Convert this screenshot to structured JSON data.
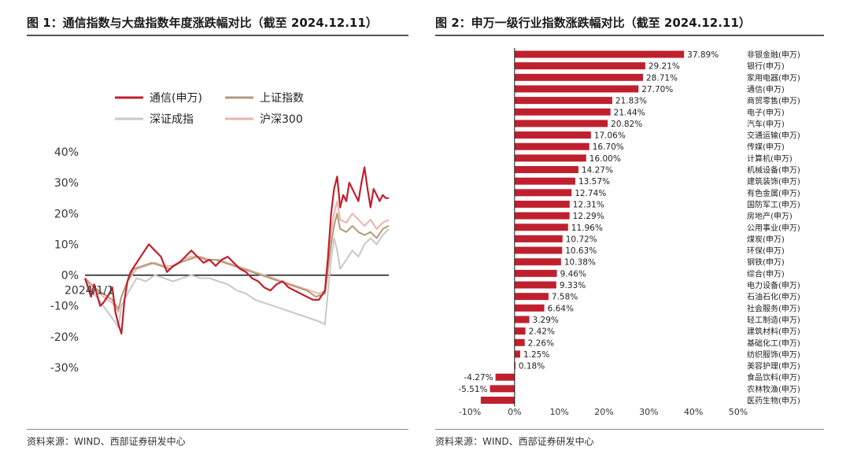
{
  "figure1": {
    "title": "图 1：通信指数与大盘指数年度涨跌幅对比（截至 2024.12.11）",
    "source": "资料来源：WIND、西部证券研发中心",
    "legend": [
      {
        "label": "通信(申万)",
        "color": "#c0202e"
      },
      {
        "label": "上证指数",
        "color": "#b59a78"
      },
      {
        "label": "深证成指",
        "color": "#c8c8c8"
      },
      {
        "label": "沪深300",
        "color": "#e8b4ad"
      }
    ]
  },
  "figure2": {
    "title": "图 2：申万一级行业指数涨跌幅对比（截至 2024.12.11）",
    "source": "资料来源：WIND、西部证券研发中心"
  },
  "chart_data": [
    {
      "type": "line",
      "title": "通信指数与大盘指数年度涨跌幅对比（截至 2024.12.11）",
      "xlabel": "",
      "ylabel": "",
      "x_tick_labels": [
        "2024/1/1"
      ],
      "y_tick_labels": [
        "40%",
        "30%",
        "20%",
        "10%",
        "0%",
        "-10%",
        "-20%",
        "-30%"
      ],
      "ylim": [
        -30,
        40
      ],
      "x_range": [
        0,
        100
      ],
      "grid": false,
      "legend_position": "top",
      "series": [
        {
          "name": "通信(申万)",
          "color": "#c0202e",
          "x": [
            0,
            2,
            3,
            5,
            6,
            8,
            9,
            10,
            11,
            12,
            13,
            14,
            15,
            17,
            19,
            21,
            23,
            25,
            27,
            29,
            31,
            33,
            35,
            37,
            39,
            41,
            43,
            45,
            47,
            49,
            51,
            53,
            55,
            57,
            59,
            61,
            63,
            65,
            67,
            69,
            71,
            73,
            75,
            77,
            79,
            80,
            81,
            82,
            83,
            84,
            85,
            86,
            87,
            88,
            89,
            90,
            91,
            92,
            93,
            94,
            95,
            96,
            97,
            98,
            99,
            100
          ],
          "y": [
            -1,
            -7,
            -3,
            -10,
            -9,
            -6,
            -4,
            -12,
            -16,
            -19,
            -8,
            -2,
            1,
            4,
            7,
            10,
            8,
            6,
            1,
            3,
            4,
            6,
            8,
            6,
            4,
            5,
            3,
            5,
            6,
            4,
            2,
            1,
            -1,
            -2,
            -4,
            -5,
            -3,
            -2,
            -4,
            -5,
            -6,
            -7,
            -8,
            -8,
            -5,
            6,
            20,
            28,
            32,
            22,
            26,
            24,
            30,
            28,
            26,
            24,
            30,
            35,
            28,
            22,
            28,
            26,
            24,
            26,
            25,
            25
          ]
        },
        {
          "name": "上证指数",
          "color": "#b59a78",
          "x": [
            0,
            3,
            6,
            9,
            11,
            12,
            14,
            16,
            19,
            22,
            25,
            28,
            31,
            34,
            37,
            40,
            43,
            46,
            49,
            52,
            55,
            58,
            61,
            64,
            67,
            70,
            73,
            76,
            79,
            80,
            81,
            82,
            83,
            84,
            86,
            88,
            90,
            92,
            94,
            96,
            98,
            100
          ],
          "y": [
            -1,
            -4,
            -6,
            -8,
            -11,
            -7,
            -2,
            2,
            3,
            4,
            3,
            2,
            4,
            5,
            6,
            5,
            5,
            4,
            3,
            2,
            1,
            0,
            -1,
            -2,
            -3,
            -4,
            -5,
            -7,
            -6,
            2,
            10,
            16,
            20,
            15,
            14,
            16,
            14,
            13,
            14,
            12,
            15,
            16
          ]
        },
        {
          "name": "深证成指",
          "color": "#c8c8c8",
          "x": [
            0,
            3,
            6,
            9,
            11,
            12,
            14,
            17,
            20,
            23,
            26,
            29,
            32,
            35,
            38,
            41,
            44,
            47,
            50,
            53,
            56,
            59,
            62,
            65,
            68,
            71,
            74,
            77,
            79,
            80,
            81,
            82,
            83,
            84,
            86,
            88,
            90,
            92,
            94,
            96,
            98,
            100
          ],
          "y": [
            -1,
            -6,
            -10,
            -14,
            -17,
            -10,
            -6,
            -1,
            -2,
            0,
            -1,
            -2,
            -1,
            0,
            -1,
            -1,
            -2,
            -3,
            -5,
            -6,
            -8,
            -9,
            -10,
            -11,
            -12,
            -13,
            -14,
            -15,
            -16,
            -5,
            5,
            12,
            8,
            2,
            5,
            8,
            6,
            10,
            12,
            10,
            13,
            15
          ]
        },
        {
          "name": "沪深300",
          "color": "#e8b4ad",
          "x": [
            0,
            3,
            6,
            9,
            11,
            12,
            14,
            17,
            20,
            23,
            26,
            29,
            32,
            35,
            38,
            41,
            44,
            47,
            50,
            53,
            56,
            59,
            62,
            65,
            68,
            71,
            74,
            77,
            79,
            80,
            81,
            82,
            83,
            84,
            86,
            88,
            90,
            92,
            94,
            96,
            98,
            100
          ],
          "y": [
            -1,
            -4,
            -7,
            -9,
            -12,
            -7,
            -2,
            2,
            3,
            4,
            3,
            3,
            5,
            6,
            6,
            5,
            5,
            4,
            3,
            2,
            1,
            0,
            -1,
            -2,
            -3,
            -4,
            -5,
            -6,
            -5,
            4,
            14,
            20,
            24,
            18,
            17,
            20,
            18,
            16,
            18,
            15,
            17,
            18
          ]
        }
      ]
    },
    {
      "type": "bar",
      "orientation": "horizontal",
      "title": "申万一级行业指数涨跌幅对比（截至 2024.12.11）",
      "xlabel": "",
      "ylabel": "",
      "xlim": [
        -10,
        50
      ],
      "x_tick_labels": [
        "-10%",
        "0%",
        "10%",
        "20%",
        "30%",
        "40%",
        "50%"
      ],
      "bar_color": "#c0202e",
      "categories": [
        "非银金融(申万)",
        "银行(申万)",
        "家用电器(申万)",
        "通信(申万)",
        "商贸零售(申万)",
        "电子(申万)",
        "汽车(申万)",
        "交通运输(申万)",
        "传媒(申万)",
        "计算机(申万)",
        "机械设备(申万)",
        "建筑装饰(申万)",
        "有色金属(申万)",
        "国防军工(申万)",
        "房地产(申万)",
        "公用事业(申万)",
        "煤炭(申万)",
        "环保(申万)",
        "钢铁(申万)",
        "综合(申万)",
        "电力设备(申万)",
        "石油石化(申万)",
        "社会服务(申万)",
        "轻工制造(申万)",
        "建筑材料(申万)",
        "基础化工(申万)",
        "纺织服饰(申万)",
        "美容护理(申万)",
        "食品饮料(申万)",
        "农林牧渔(申万)",
        "医药生物(申万)"
      ],
      "values": [
        37.89,
        29.21,
        28.71,
        27.7,
        21.83,
        21.44,
        20.82,
        17.06,
        16.7,
        16.0,
        14.27,
        13.57,
        12.74,
        12.31,
        12.29,
        11.96,
        10.72,
        10.63,
        10.38,
        9.46,
        9.33,
        7.58,
        6.64,
        3.29,
        2.42,
        2.26,
        1.25,
        0.18,
        -4.27,
        -5.51,
        -7.56
      ],
      "data_labels": [
        "37.89%",
        "29.21%",
        "28.71%",
        "27.70%",
        "21.83%",
        "21.44%",
        "20.82%",
        "17.06%",
        "16.70%",
        "16.00%",
        "14.27%",
        "13.57%",
        "12.74%",
        "12.31%",
        "12.29%",
        "11.96%",
        "10.72%",
        "10.63%",
        "10.38%",
        "9.46%",
        "9.33%",
        "7.58%",
        "6.64%",
        "3.29%",
        "2.42%",
        "2.26%",
        "1.25%",
        "0.18%",
        "-4.27%",
        "-5.51%",
        ""
      ]
    }
  ]
}
